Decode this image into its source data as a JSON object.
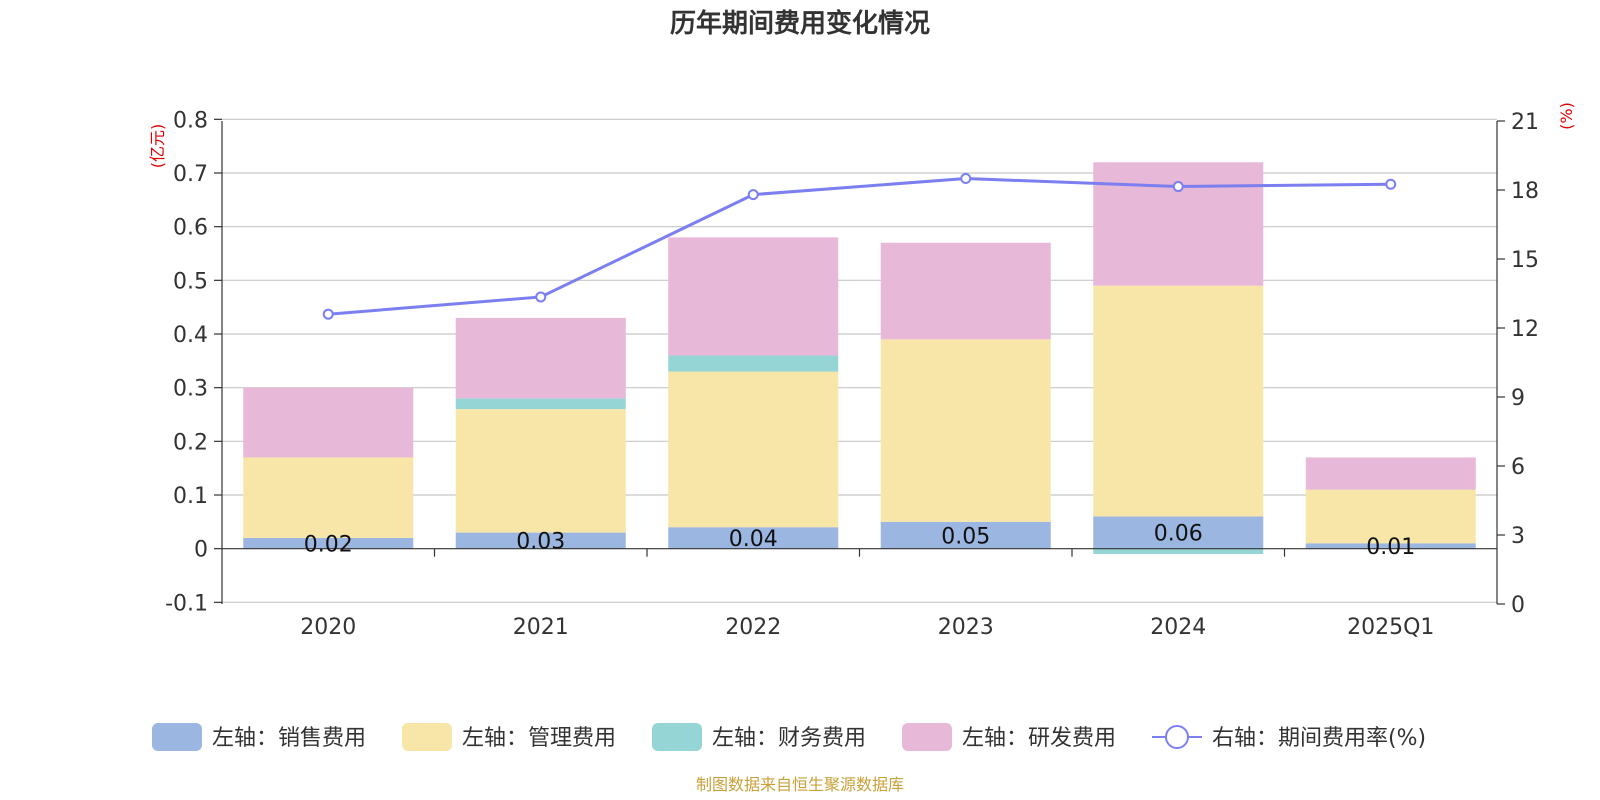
{
  "chart_data": {
    "type": "bar",
    "title": "历年期间费用变化情况",
    "categories": [
      "2020",
      "2021",
      "2022",
      "2023",
      "2024",
      "2025Q1"
    ],
    "left_axis": {
      "unit": "(亿元)",
      "min": -0.1,
      "max": 0.8,
      "ticks": [
        "-0.1",
        "0",
        "0.1",
        "0.2",
        "0.3",
        "0.4",
        "0.5",
        "0.6",
        "0.7",
        "0.8"
      ]
    },
    "right_axis": {
      "unit": "(%)",
      "min": 0,
      "max": 21,
      "ticks": [
        "0",
        "3",
        "6",
        "9",
        "12",
        "15",
        "18",
        "21"
      ]
    },
    "bar_series": [
      {
        "name": "左轴：销售费用",
        "color": "#9bb6e0",
        "values": [
          0.02,
          0.03,
          0.04,
          0.05,
          0.06,
          0.01
        ],
        "labels": [
          "0.02",
          "0.03",
          "0.04",
          "0.05",
          "0.06",
          "0.01"
        ]
      },
      {
        "name": "左轴：管理费用",
        "color": "#f8e6a8",
        "values": [
          0.15,
          0.23,
          0.29,
          0.34,
          0.43,
          0.1
        ]
      },
      {
        "name": "左轴：财务费用",
        "color": "#96d5d6",
        "values": [
          0.0,
          0.02,
          0.03,
          0.0,
          -0.01,
          0.0
        ]
      },
      {
        "name": "左轴：研发费用",
        "color": "#e8b8d8",
        "values": [
          0.13,
          0.15,
          0.22,
          0.18,
          0.23,
          0.06
        ]
      }
    ],
    "line_series": {
      "name": "右轴：期间费用率(%)",
      "color": "#7b7ff0",
      "values": [
        12.6,
        13.35,
        17.8,
        18.5,
        18.15,
        18.25
      ]
    },
    "grid": true,
    "legend_position": "bottom"
  },
  "source": "制图数据来自恒生聚源数据库"
}
